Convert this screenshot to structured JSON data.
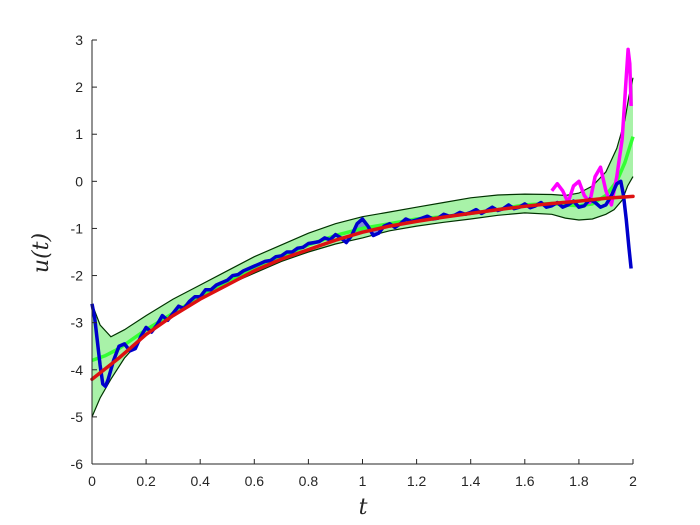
{
  "chart_data": {
    "type": "line",
    "title": "",
    "xlabel": "t",
    "ylabel": "u(t)",
    "xlim": [
      0,
      2
    ],
    "ylim": [
      -6,
      3
    ],
    "grid": false,
    "xticks": [
      "0",
      "0.2",
      "0.4",
      "0.6",
      "0.8",
      "1",
      "1.2",
      "1.4",
      "1.6",
      "1.8",
      "2"
    ],
    "yticks": [
      "-6",
      "-5",
      "-4",
      "-3",
      "-2",
      "-1",
      "0",
      "1",
      "2",
      "3"
    ],
    "colors": {
      "band_fill": "#99f099",
      "band_edge": "#003300",
      "blue_band_fill": "#6f6fe0",
      "green_line": "#33ff33",
      "blue_line": "#0000cc",
      "magenta_line": "#ff00ff",
      "red_line": "#dd1111",
      "axis": "#262626"
    },
    "band_upper": {
      "x": [
        0,
        0.03,
        0.07,
        0.12,
        0.2,
        0.3,
        0.4,
        0.5,
        0.6,
        0.7,
        0.8,
        0.9,
        1.0,
        1.1,
        1.2,
        1.3,
        1.4,
        1.5,
        1.6,
        1.7,
        1.75,
        1.8,
        1.85,
        1.9,
        1.94,
        1.97,
        1.985,
        2.0
      ],
      "y": [
        -2.6,
        -3.05,
        -3.3,
        -3.15,
        -2.85,
        -2.5,
        -2.2,
        -1.9,
        -1.6,
        -1.35,
        -1.1,
        -0.9,
        -0.75,
        -0.65,
        -0.55,
        -0.45,
        -0.35,
        -0.29,
        -0.27,
        -0.28,
        -0.3,
        -0.25,
        -0.1,
        0.2,
        0.7,
        1.3,
        1.8,
        2.2
      ]
    },
    "band_lower": {
      "x": [
        0,
        0.03,
        0.07,
        0.12,
        0.2,
        0.3,
        0.4,
        0.5,
        0.6,
        0.7,
        0.8,
        0.9,
        1.0,
        1.1,
        1.2,
        1.3,
        1.4,
        1.5,
        1.6,
        1.7,
        1.75,
        1.8,
        1.85,
        1.9,
        1.93,
        1.96,
        1.98,
        2.0
      ],
      "y": [
        -5.0,
        -4.6,
        -4.2,
        -3.75,
        -3.25,
        -2.85,
        -2.5,
        -2.2,
        -1.95,
        -1.7,
        -1.5,
        -1.33,
        -1.2,
        -1.05,
        -0.95,
        -0.87,
        -0.8,
        -0.72,
        -0.67,
        -0.7,
        -0.78,
        -0.82,
        -0.8,
        -0.7,
        -0.6,
        -0.4,
        -0.1,
        0.1
      ]
    },
    "series": [
      {
        "values": [
          [
            0,
            -3.8
          ],
          [
            0.05,
            -3.7
          ],
          [
            0.1,
            -3.55
          ],
          [
            0.2,
            -3.15
          ],
          [
            0.3,
            -2.8
          ],
          [
            0.4,
            -2.45
          ],
          [
            0.5,
            -2.15
          ],
          [
            0.6,
            -1.85
          ],
          [
            0.7,
            -1.6
          ],
          [
            0.8,
            -1.35
          ],
          [
            0.9,
            -1.15
          ],
          [
            1.0,
            -1.0
          ],
          [
            1.1,
            -0.9
          ],
          [
            1.2,
            -0.8
          ],
          [
            1.3,
            -0.75
          ],
          [
            1.4,
            -0.68
          ],
          [
            1.5,
            -0.6
          ],
          [
            1.6,
            -0.5
          ],
          [
            1.7,
            -0.47
          ],
          [
            1.75,
            -0.5
          ],
          [
            1.8,
            -0.52
          ],
          [
            1.85,
            -0.48
          ],
          [
            1.9,
            -0.3
          ],
          [
            1.94,
            0.0
          ],
          [
            1.97,
            0.4
          ],
          [
            2.0,
            0.95
          ]
        ]
      },
      {
        "values": [
          [
            0,
            -2.6
          ],
          [
            0.01,
            -2.9
          ],
          [
            0.02,
            -3.4
          ],
          [
            0.03,
            -3.9
          ],
          [
            0.04,
            -4.3
          ],
          [
            0.05,
            -4.35
          ],
          [
            0.06,
            -4.2
          ],
          [
            0.08,
            -3.8
          ],
          [
            0.1,
            -3.5
          ],
          [
            0.12,
            -3.45
          ],
          [
            0.14,
            -3.6
          ],
          [
            0.16,
            -3.55
          ],
          [
            0.18,
            -3.3
          ],
          [
            0.2,
            -3.1
          ],
          [
            0.22,
            -3.2
          ],
          [
            0.24,
            -3.05
          ],
          [
            0.26,
            -2.85
          ],
          [
            0.28,
            -2.95
          ],
          [
            0.3,
            -2.8
          ],
          [
            0.32,
            -2.65
          ],
          [
            0.34,
            -2.7
          ],
          [
            0.36,
            -2.55
          ],
          [
            0.38,
            -2.45
          ],
          [
            0.4,
            -2.45
          ],
          [
            0.42,
            -2.3
          ],
          [
            0.44,
            -2.3
          ],
          [
            0.46,
            -2.2
          ],
          [
            0.48,
            -2.15
          ],
          [
            0.5,
            -2.1
          ],
          [
            0.52,
            -2.0
          ],
          [
            0.54,
            -1.98
          ],
          [
            0.56,
            -1.9
          ],
          [
            0.58,
            -1.85
          ],
          [
            0.6,
            -1.8
          ],
          [
            0.62,
            -1.75
          ],
          [
            0.64,
            -1.7
          ],
          [
            0.66,
            -1.68
          ],
          [
            0.68,
            -1.6
          ],
          [
            0.7,
            -1.58
          ],
          [
            0.72,
            -1.5
          ],
          [
            0.74,
            -1.5
          ],
          [
            0.76,
            -1.42
          ],
          [
            0.78,
            -1.4
          ],
          [
            0.8,
            -1.32
          ],
          [
            0.82,
            -1.3
          ],
          [
            0.84,
            -1.28
          ],
          [
            0.86,
            -1.2
          ],
          [
            0.88,
            -1.24
          ],
          [
            0.9,
            -1.13
          ],
          [
            0.92,
            -1.2
          ],
          [
            0.94,
            -1.3
          ],
          [
            0.96,
            -1.15
          ],
          [
            0.98,
            -0.9
          ],
          [
            1.0,
            -0.8
          ],
          [
            1.02,
            -0.95
          ],
          [
            1.04,
            -1.15
          ],
          [
            1.06,
            -1.1
          ],
          [
            1.08,
            -0.95
          ],
          [
            1.1,
            -0.9
          ],
          [
            1.12,
            -0.98
          ],
          [
            1.14,
            -0.9
          ],
          [
            1.16,
            -0.8
          ],
          [
            1.18,
            -0.85
          ],
          [
            1.2,
            -0.82
          ],
          [
            1.22,
            -0.78
          ],
          [
            1.24,
            -0.74
          ],
          [
            1.26,
            -0.8
          ],
          [
            1.28,
            -0.78
          ],
          [
            1.3,
            -0.7
          ],
          [
            1.32,
            -0.74
          ],
          [
            1.34,
            -0.72
          ],
          [
            1.36,
            -0.66
          ],
          [
            1.38,
            -0.7
          ],
          [
            1.4,
            -0.66
          ],
          [
            1.42,
            -0.6
          ],
          [
            1.44,
            -0.68
          ],
          [
            1.46,
            -0.62
          ],
          [
            1.48,
            -0.55
          ],
          [
            1.5,
            -0.62
          ],
          [
            1.52,
            -0.58
          ],
          [
            1.54,
            -0.5
          ],
          [
            1.56,
            -0.58
          ],
          [
            1.58,
            -0.55
          ],
          [
            1.6,
            -0.48
          ],
          [
            1.62,
            -0.56
          ],
          [
            1.64,
            -0.52
          ],
          [
            1.66,
            -0.45
          ],
          [
            1.68,
            -0.55
          ],
          [
            1.7,
            -0.52
          ],
          [
            1.72,
            -0.45
          ],
          [
            1.74,
            -0.55
          ],
          [
            1.76,
            -0.5
          ],
          [
            1.78,
            -0.42
          ],
          [
            1.8,
            -0.55
          ],
          [
            1.82,
            -0.52
          ],
          [
            1.84,
            -0.38
          ],
          [
            1.86,
            -0.45
          ],
          [
            1.88,
            -0.55
          ],
          [
            1.9,
            -0.5
          ],
          [
            1.92,
            -0.3
          ],
          [
            1.94,
            -0.05
          ],
          [
            1.955,
            0.0
          ],
          [
            1.965,
            -0.3
          ],
          [
            1.975,
            -0.8
          ],
          [
            1.985,
            -1.4
          ],
          [
            1.993,
            -1.85
          ]
        ]
      },
      {
        "values": [
          [
            1.7,
            -0.2
          ],
          [
            1.72,
            -0.05
          ],
          [
            1.74,
            -0.2
          ],
          [
            1.76,
            -0.45
          ],
          [
            1.78,
            -0.1
          ],
          [
            1.8,
            0.0
          ],
          [
            1.82,
            -0.3
          ],
          [
            1.84,
            -0.45
          ],
          [
            1.86,
            0.1
          ],
          [
            1.88,
            0.3
          ],
          [
            1.9,
            -0.2
          ],
          [
            1.92,
            -0.5
          ],
          [
            1.94,
            0.1
          ],
          [
            1.96,
            0.9
          ],
          [
            1.975,
            2.2
          ],
          [
            1.982,
            2.8
          ],
          [
            1.988,
            2.5
          ],
          [
            1.993,
            1.6
          ]
        ]
      },
      {
        "values": [
          [
            0,
            -4.2
          ],
          [
            0.1,
            -3.75
          ],
          [
            0.2,
            -3.25
          ],
          [
            0.3,
            -2.85
          ],
          [
            0.4,
            -2.5
          ],
          [
            0.5,
            -2.2
          ],
          [
            0.6,
            -1.9
          ],
          [
            0.7,
            -1.65
          ],
          [
            0.8,
            -1.45
          ],
          [
            0.9,
            -1.25
          ],
          [
            1.0,
            -1.08
          ],
          [
            1.1,
            -0.95
          ],
          [
            1.2,
            -0.85
          ],
          [
            1.3,
            -0.76
          ],
          [
            1.4,
            -0.68
          ],
          [
            1.5,
            -0.6
          ],
          [
            1.6,
            -0.53
          ],
          [
            1.7,
            -0.47
          ],
          [
            1.8,
            -0.42
          ],
          [
            1.9,
            -0.36
          ],
          [
            2.0,
            -0.32
          ]
        ]
      }
    ]
  }
}
